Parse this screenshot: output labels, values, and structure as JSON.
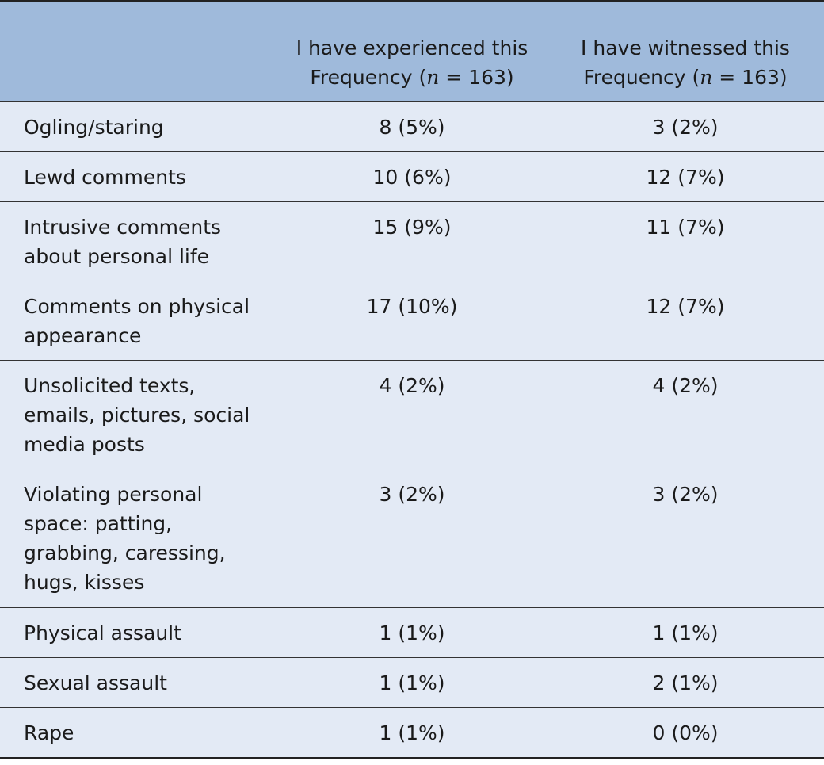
{
  "table": {
    "header": [
      {
        "line1": "I have experienced this",
        "line2": [
          "Frequency (",
          "n",
          " = 163)"
        ]
      },
      {
        "line1": "I have witnessed this",
        "line2": [
          "Frequency (",
          "n",
          " = 163)"
        ]
      }
    ],
    "rows": [
      [
        "Ogling/staring",
        "8 (5%)",
        "3 (2%)"
      ],
      [
        "Lewd comments",
        "10 (6%)",
        "12 (7%)"
      ],
      [
        "Intrusive comments about personal life",
        "15 (9%)",
        "11 (7%)"
      ],
      [
        "Comments on physical appearance",
        "17 (10%)",
        "12 (7%)"
      ],
      [
        "Unsolicited texts, emails, pictures, social media posts",
        "4 (2%)",
        "4 (2%)"
      ],
      [
        "Violating personal space: patting, grabbing, caressing, hugs, kisses",
        "3 (2%)",
        "3 (2%)"
      ],
      [
        "Physical assault",
        "1 (1%)",
        "1 (1%)"
      ],
      [
        "Sexual assault",
        "1 (1%)",
        "2 (1%)"
      ],
      [
        "Rape",
        "1 (1%)",
        "0 (0%)"
      ]
    ]
  }
}
